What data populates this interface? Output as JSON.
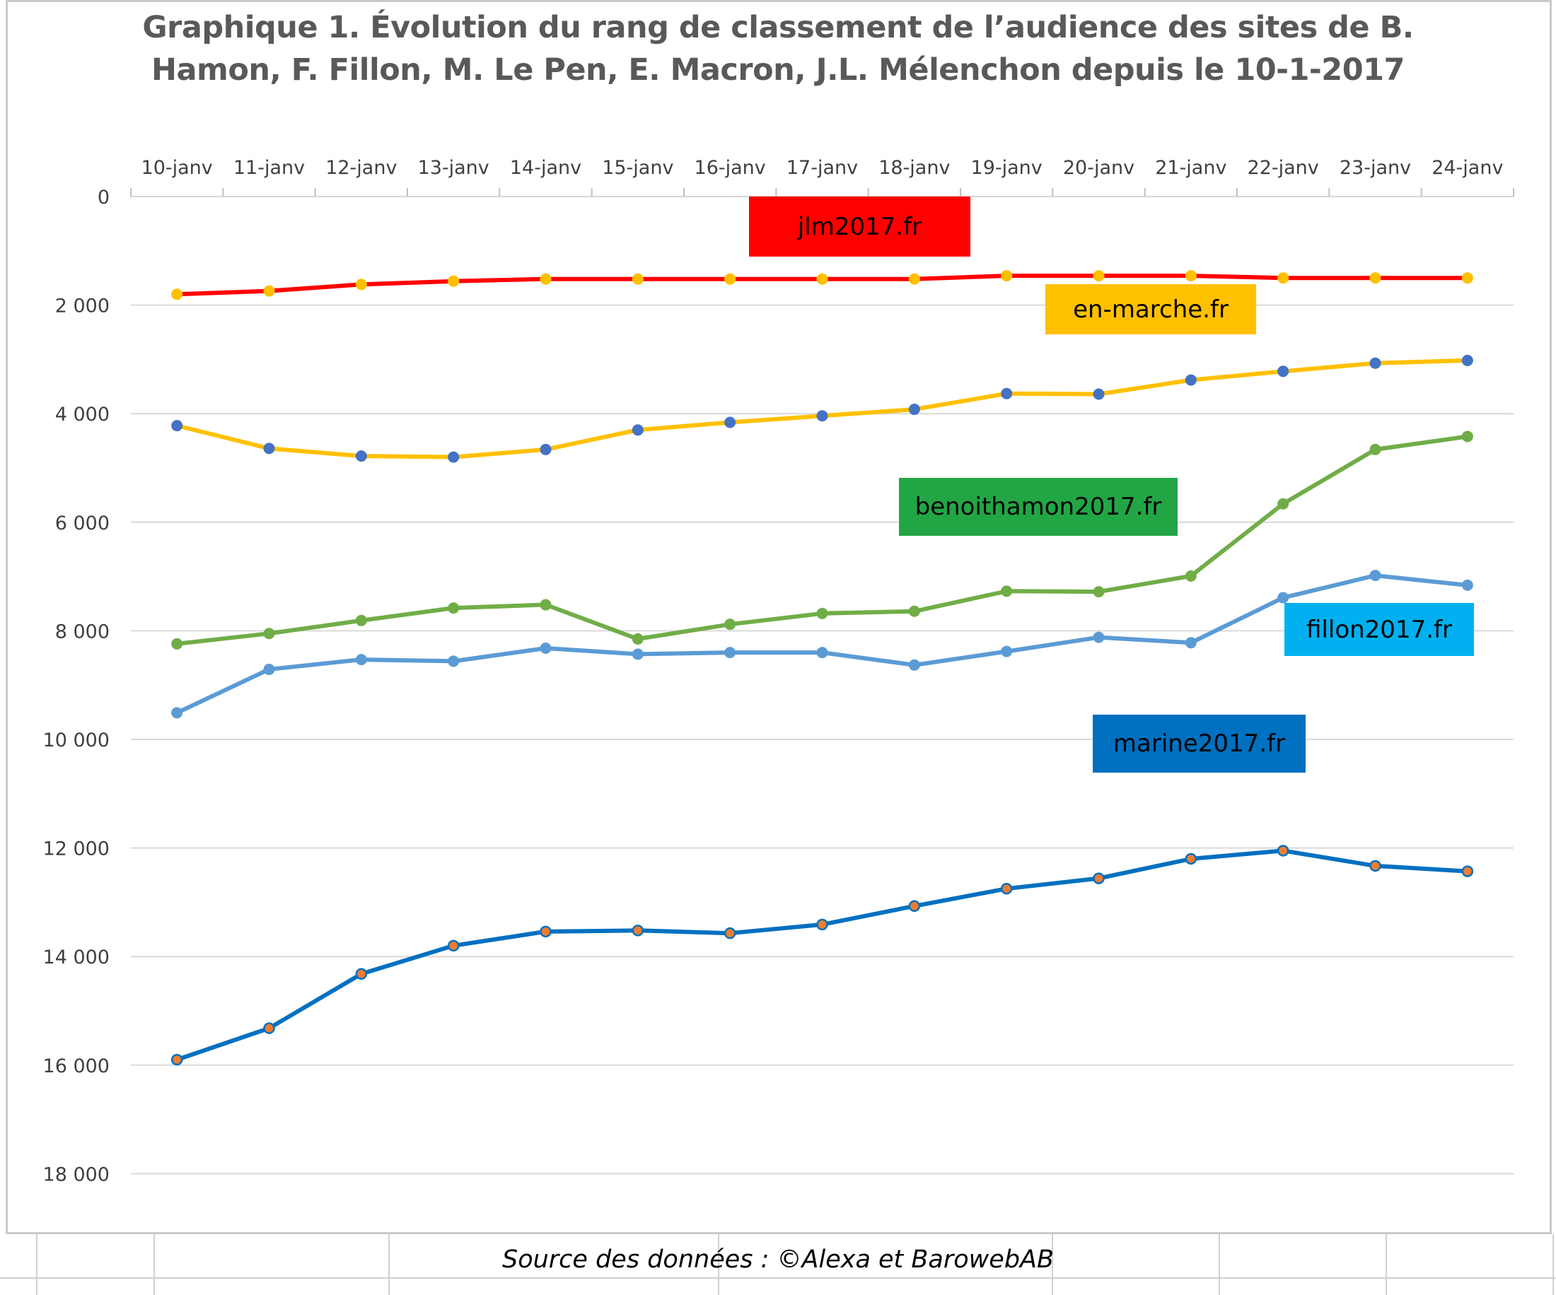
{
  "chart_data": {
    "type": "line",
    "title_line1": "Graphique 1. Évolution du rang de classement de l’audience des sites de B.",
    "title_line2": "Hamon, F. Fillon, M. Le Pen, E. Macron, J.L. Mélenchon depuis le 10-1-2017",
    "categories": [
      "10-janv",
      "11-janv",
      "12-janv",
      "13-janv",
      "14-janv",
      "15-janv",
      "16-janv",
      "17-janv",
      "18-janv",
      "19-janv",
      "20-janv",
      "21-janv",
      "22-janv",
      "23-janv",
      "24-janv"
    ],
    "y_axis": {
      "reversed": true,
      "ylim": [
        0,
        19000
      ],
      "ticks": [
        0,
        2000,
        4000,
        6000,
        8000,
        10000,
        12000,
        14000,
        16000,
        18000
      ],
      "tick_labels": [
        "0",
        "2 000",
        "4 000",
        "6 000",
        "8 000",
        "10 000",
        "12 000",
        "14 000",
        "16 000",
        "18 000"
      ]
    },
    "x_axis_position": "top",
    "grid": true,
    "series": [
      {
        "name": "jlm2017.fr",
        "color": "#ff0000",
        "marker_color": "#ffc000",
        "box_color": "#ff0000",
        "text_color": "#000000",
        "values": [
          1800,
          1740,
          1620,
          1560,
          1520,
          1520,
          1520,
          1520,
          1520,
          1460,
          1460,
          1460,
          1500,
          1500,
          1500
        ]
      },
      {
        "name": "en-marche.fr",
        "color": "#ffc000",
        "marker_color": "#4472c4",
        "box_color": "#ffc000",
        "text_color": "#000000",
        "values": [
          4220,
          4640,
          4780,
          4800,
          4660,
          4300,
          4160,
          4040,
          3920,
          3630,
          3640,
          3380,
          3220,
          3070,
          3020
        ]
      },
      {
        "name": "benoithamon2017.fr",
        "color": "#70ad47",
        "marker_color": "#70ad47",
        "box_color": "#22a645",
        "text_color": "#000000",
        "values": [
          8240,
          8050,
          7810,
          7580,
          7520,
          8150,
          7880,
          7680,
          7640,
          7270,
          7280,
          6990,
          5660,
          4660,
          4420
        ]
      },
      {
        "name": "fillon2017.fr",
        "color": "#5b9bd5",
        "marker_color": "#5b9bd5",
        "box_color": "#00b0f0",
        "text_color": "#000000",
        "values": [
          9510,
          8710,
          8530,
          8560,
          8320,
          8430,
          8400,
          8400,
          8630,
          8380,
          8120,
          8220,
          7390,
          6980,
          7160
        ]
      },
      {
        "name": "marine2017.fr",
        "color": "#0070c0",
        "marker_color": "#ed7d31",
        "box_color": "#0070c0",
        "text_color": "#000000",
        "values": [
          15900,
          15320,
          14320,
          13800,
          13540,
          13520,
          13570,
          13410,
          13070,
          12750,
          12560,
          12200,
          12050,
          12330,
          12430
        ]
      }
    ]
  },
  "source_note": "Source des données : ©Alexa et BarowebAB"
}
